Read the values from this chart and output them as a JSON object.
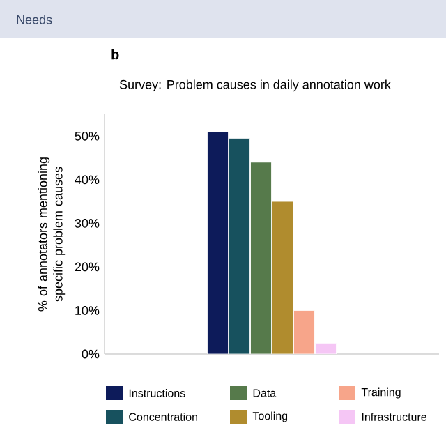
{
  "chart_data": {
    "type": "bar",
    "title": "Survey: Problem causes in daily annotation work",
    "ylabel": "% of annotators mentioning specific problem causes",
    "categories": [
      null
    ],
    "series": [
      {
        "name": "Instructions",
        "color": "#0d1b5a",
        "values": [
          51
        ]
      },
      {
        "name": "Concentration",
        "color": "#17515e",
        "values": [
          49.5
        ]
      },
      {
        "name": "Data",
        "color": "#567a4b",
        "values": [
          44
        ]
      },
      {
        "name": "Tooling",
        "color": "#b08c2e",
        "values": [
          35
        ]
      },
      {
        "name": "Training",
        "color": "#f7a58a",
        "values": [
          10
        ]
      },
      {
        "name": "Infrastructure",
        "color": "#f5c6f5",
        "values": [
          2.5
        ]
      }
    ],
    "ylim": [
      0,
      55
    ],
    "yticks": [
      {
        "value": 0,
        "label": "0%"
      },
      {
        "value": 10,
        "label": "10%"
      },
      {
        "value": 20,
        "label": "20%"
      },
      {
        "value": 30,
        "label": "30%"
      },
      {
        "value": 40,
        "label": "40%"
      },
      {
        "value": 50,
        "label": "50%"
      }
    ],
    "legend": "bottom",
    "grid": false,
    "annotations": [
      "Needs",
      "b"
    ]
  }
}
